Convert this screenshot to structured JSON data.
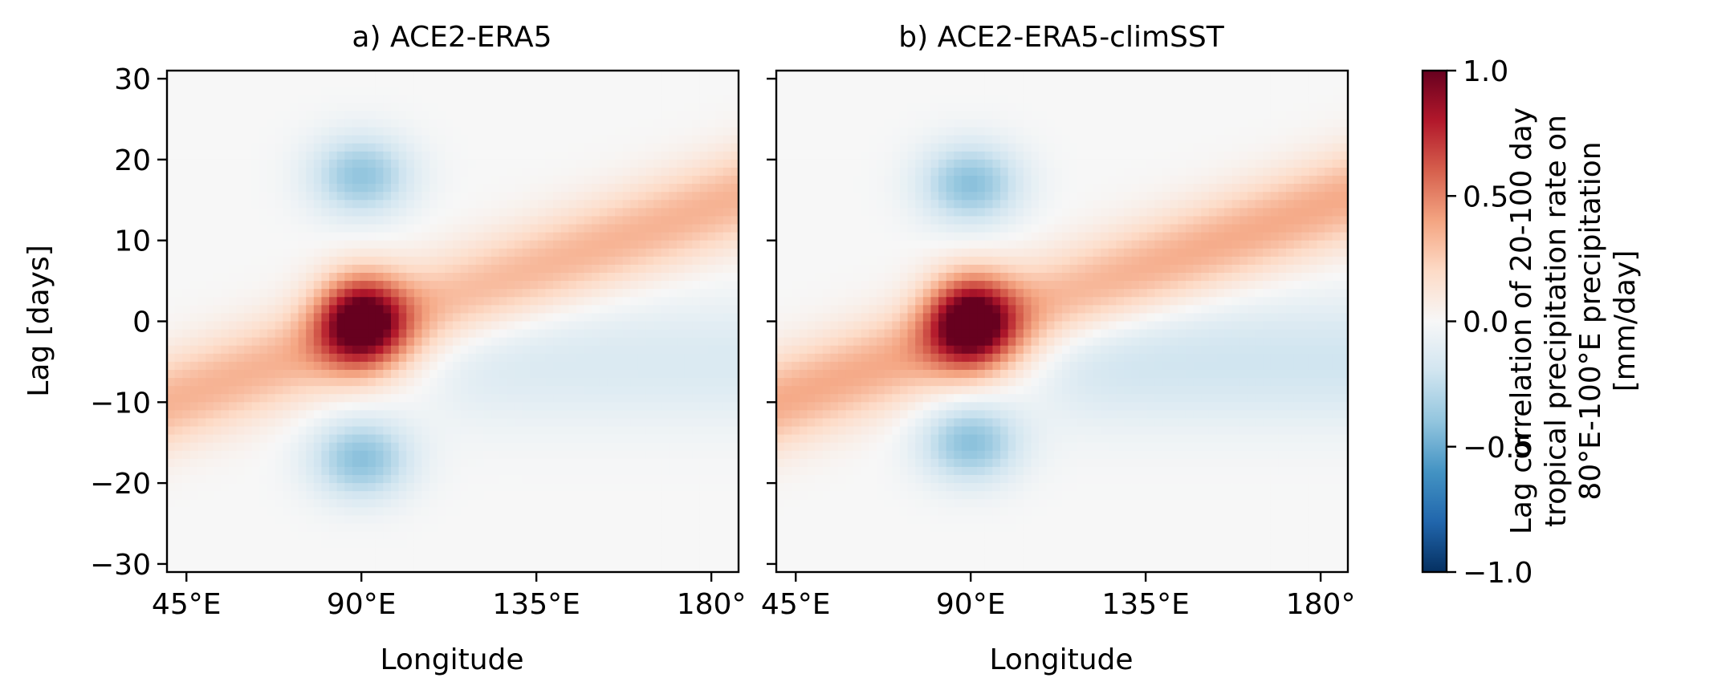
{
  "chart_data": [
    {
      "type": "heatmap",
      "title": "a) ACE2-ERA5",
      "xlabel": "Longitude",
      "ylabel": "Lag [days]",
      "xlim": [
        40,
        187
      ],
      "ylim": [
        -31,
        31
      ],
      "x_ticks": [
        45,
        90,
        135,
        180
      ],
      "x_tick_labels": [
        "45°E",
        "90°E",
        "135°E",
        "180°"
      ],
      "y_ticks": [
        30,
        20,
        10,
        0,
        -10,
        -20,
        -30
      ],
      "y_tick_labels": [
        "30",
        "20",
        "10",
        "0",
        "−10",
        "−20",
        "−30"
      ],
      "peak": {
        "lon": 90,
        "lag": 0,
        "value": 0.95
      },
      "features": [
        {
          "kind": "positive-band",
          "lon_range": [
            40,
            185
          ],
          "lag_at_start": -10,
          "lag_at_end": 15,
          "value": 0.35
        },
        {
          "kind": "negative-lobe",
          "lon": 90,
          "lag": 18,
          "value": -0.4
        },
        {
          "kind": "negative-lobe",
          "lon": 90,
          "lag": -17,
          "value": -0.42
        },
        {
          "kind": "negative-band",
          "lon_range": [
            110,
            185
          ],
          "lag": -5,
          "value": -0.15
        }
      ]
    },
    {
      "type": "heatmap",
      "title": "b) ACE2-ERA5-climSST",
      "xlabel": "Longitude",
      "ylabel": "",
      "xlim": [
        40,
        187
      ],
      "ylim": [
        -31,
        31
      ],
      "x_ticks": [
        45,
        90,
        135,
        180
      ],
      "x_tick_labels": [
        "45°E",
        "90°E",
        "135°E",
        "180°"
      ],
      "y_ticks": [
        30,
        20,
        10,
        0,
        -10,
        -20,
        -30
      ],
      "y_tick_labels": [],
      "peak": {
        "lon": 90,
        "lag": 0,
        "value": 0.95
      },
      "features": [
        {
          "kind": "positive-band",
          "lon_range": [
            40,
            185
          ],
          "lag_at_start": -10,
          "lag_at_end": 15,
          "value": 0.38
        },
        {
          "kind": "negative-lobe",
          "lon": 90,
          "lag": 17,
          "value": -0.42
        },
        {
          "kind": "negative-lobe",
          "lon": 90,
          "lag": -15,
          "value": -0.42
        },
        {
          "kind": "negative-band",
          "lon_range": [
            110,
            185
          ],
          "lag": -5,
          "value": -0.2
        }
      ]
    }
  ],
  "colorbar": {
    "colormap": "RdBu_r",
    "vmin": -1.0,
    "vmax": 1.0,
    "ticks": [
      1.0,
      0.5,
      0.0,
      -0.5,
      -1.0
    ],
    "tick_labels": [
      "1.0",
      "0.5",
      "0.0",
      "−0.5",
      "−1.0"
    ],
    "label_lines": [
      "Lag correlation of 20-100 day",
      "tropical precipitation rate on",
      "80°E-100°E precipitation",
      "[mm/day]"
    ]
  }
}
